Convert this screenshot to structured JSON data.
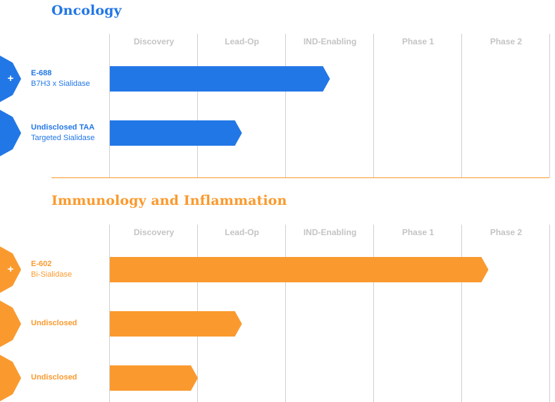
{
  "phases": [
    "Discovery",
    "Lead-Op",
    "IND-Enabling",
    "Phase 1",
    "Phase 2"
  ],
  "chart_data": [
    {
      "type": "bar",
      "title": "Oncology",
      "categories": [
        "E-688",
        "Undisclosed TAA"
      ],
      "series": [
        {
          "values": [
            2.5,
            1.5
          ]
        }
      ],
      "xlim": [
        0,
        5
      ],
      "xticks": [
        "Discovery",
        "Lead-Op",
        "IND-Enabling",
        "Phase 1",
        "Phase 2"
      ]
    },
    {
      "type": "bar",
      "title": "Immunology and Inflammation",
      "categories": [
        "E-602",
        "Undisclosed",
        "Undisclosed"
      ],
      "series": [
        {
          "values": [
            4.3,
            1.5,
            1.0
          ]
        }
      ],
      "xlim": [
        0,
        5
      ],
      "xticks": [
        "Discovery",
        "Lead-Op",
        "IND-Enabling",
        "Phase 1",
        "Phase 2"
      ]
    }
  ],
  "sections": [
    {
      "title": "Oncology",
      "color": "#2277e6",
      "programs": [
        {
          "name": "E-688",
          "subtitle": "B7H3 x Sialidase",
          "expandable": true,
          "progress": 2.5
        },
        {
          "name": "Undisclosed TAA",
          "subtitle": "Targeted Sialidase",
          "expandable": false,
          "progress": 1.5
        }
      ]
    },
    {
      "title": "Immunology and Inflammation",
      "color": "#fa9a2e",
      "programs": [
        {
          "name": "E-602",
          "subtitle": "Bi-Sialidase",
          "expandable": true,
          "progress": 4.3
        },
        {
          "name": "Undisclosed",
          "subtitle": "",
          "expandable": false,
          "progress": 1.5
        },
        {
          "name": "Undisclosed",
          "subtitle": "",
          "expandable": false,
          "progress": 1.0
        }
      ]
    }
  ],
  "expand_symbol": "+",
  "colors": {
    "grid": "#d0d0d0",
    "header_text": "#c4c4c4"
  }
}
